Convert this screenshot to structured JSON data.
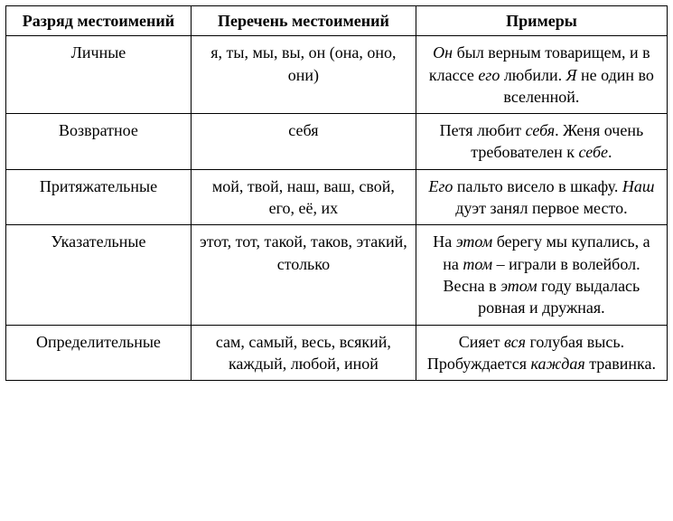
{
  "table": {
    "headers": [
      "Разряд местоимений",
      "Перечень местоимений",
      "Примеры"
    ],
    "rows": [
      {
        "category": "Личные",
        "list": "я, ты, мы, вы, он (она, оно, они)",
        "example_parts": {
          "p1": "Он",
          "p2": " был верным товарищем, и в классе ",
          "p3": "его",
          "p4": " любили. ",
          "p5": "Я",
          "p6": " не один во вселенной."
        }
      },
      {
        "category": "Возвратное",
        "list": "себя",
        "example_parts": {
          "p1": "Петя любит ",
          "p2": "себя",
          "p3": ". Женя очень требователен к ",
          "p4": "себе",
          "p5": "."
        }
      },
      {
        "category": "Притяжательные",
        "list": "мой, твой, наш, ваш, свой, его, её, их",
        "example_parts": {
          "p1": "Его",
          "p2": " пальто висело в шкафу. ",
          "p3": "Наш",
          "p4": " дуэт занял первое место."
        }
      },
      {
        "category": "Указательные",
        "list": "этот, тот, такой, таков, этакий, столько",
        "example_parts": {
          "p1": "На ",
          "p2": "этом",
          "p3": " берегу мы купались, а на ",
          "p4": "том",
          "p5": " – играли в волейбол. Весна в ",
          "p6": "этом",
          "p7": " году выдалась ровная и дружная."
        }
      },
      {
        "category": "Определительные",
        "list": "сам, самый, весь, всякий, каждый, любой, иной",
        "example_parts": {
          "p1": "Сияет ",
          "p2": "вся",
          "p3": " голубая высь. Пробуждается ",
          "p4": "каждая",
          "p5": " травинка."
        }
      }
    ]
  },
  "styling": {
    "font_family": "Times New Roman",
    "font_size_pt": 14,
    "border_color": "#000000",
    "background_color": "#ffffff",
    "text_color": "#000000",
    "border_width": 1.5,
    "col_widths_pct": [
      28,
      34,
      38
    ]
  }
}
